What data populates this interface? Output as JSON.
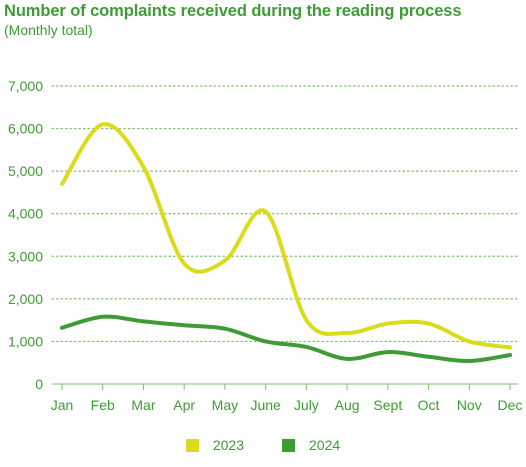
{
  "colors": {
    "text": "#3f9b35",
    "grid": "#7ec06c",
    "series_2023": "#dadc1b",
    "series_2024": "#3f9b35"
  },
  "chart_data": {
    "type": "line",
    "title": "Number of complaints received during the reading process",
    "subtitle": "(Monthly total)",
    "categories": [
      "Jan",
      "Feb",
      "Mar",
      "Apr",
      "May",
      "June",
      "July",
      "Aug",
      "Sept",
      "Oct",
      "Nov",
      "Dec"
    ],
    "series": [
      {
        "name": "2023",
        "values": [
          4700,
          6100,
          5100,
          2830,
          2900,
          4050,
          1500,
          1200,
          1420,
          1420,
          1000,
          860
        ]
      },
      {
        "name": "2024",
        "values": [
          1320,
          1580,
          1470,
          1380,
          1300,
          1000,
          870,
          590,
          750,
          640,
          540,
          680
        ]
      }
    ],
    "y_ticks": [
      0,
      1000,
      2000,
      3000,
      4000,
      5000,
      6000,
      7000
    ],
    "y_tick_labels": [
      "0",
      "1,000",
      "2,000",
      "3,000",
      "4,000",
      "5,000",
      "6,000",
      "7,000"
    ],
    "ylim": [
      0,
      7000
    ],
    "grid": true,
    "grid_style": "dotted",
    "legend_position": "bottom-center"
  }
}
